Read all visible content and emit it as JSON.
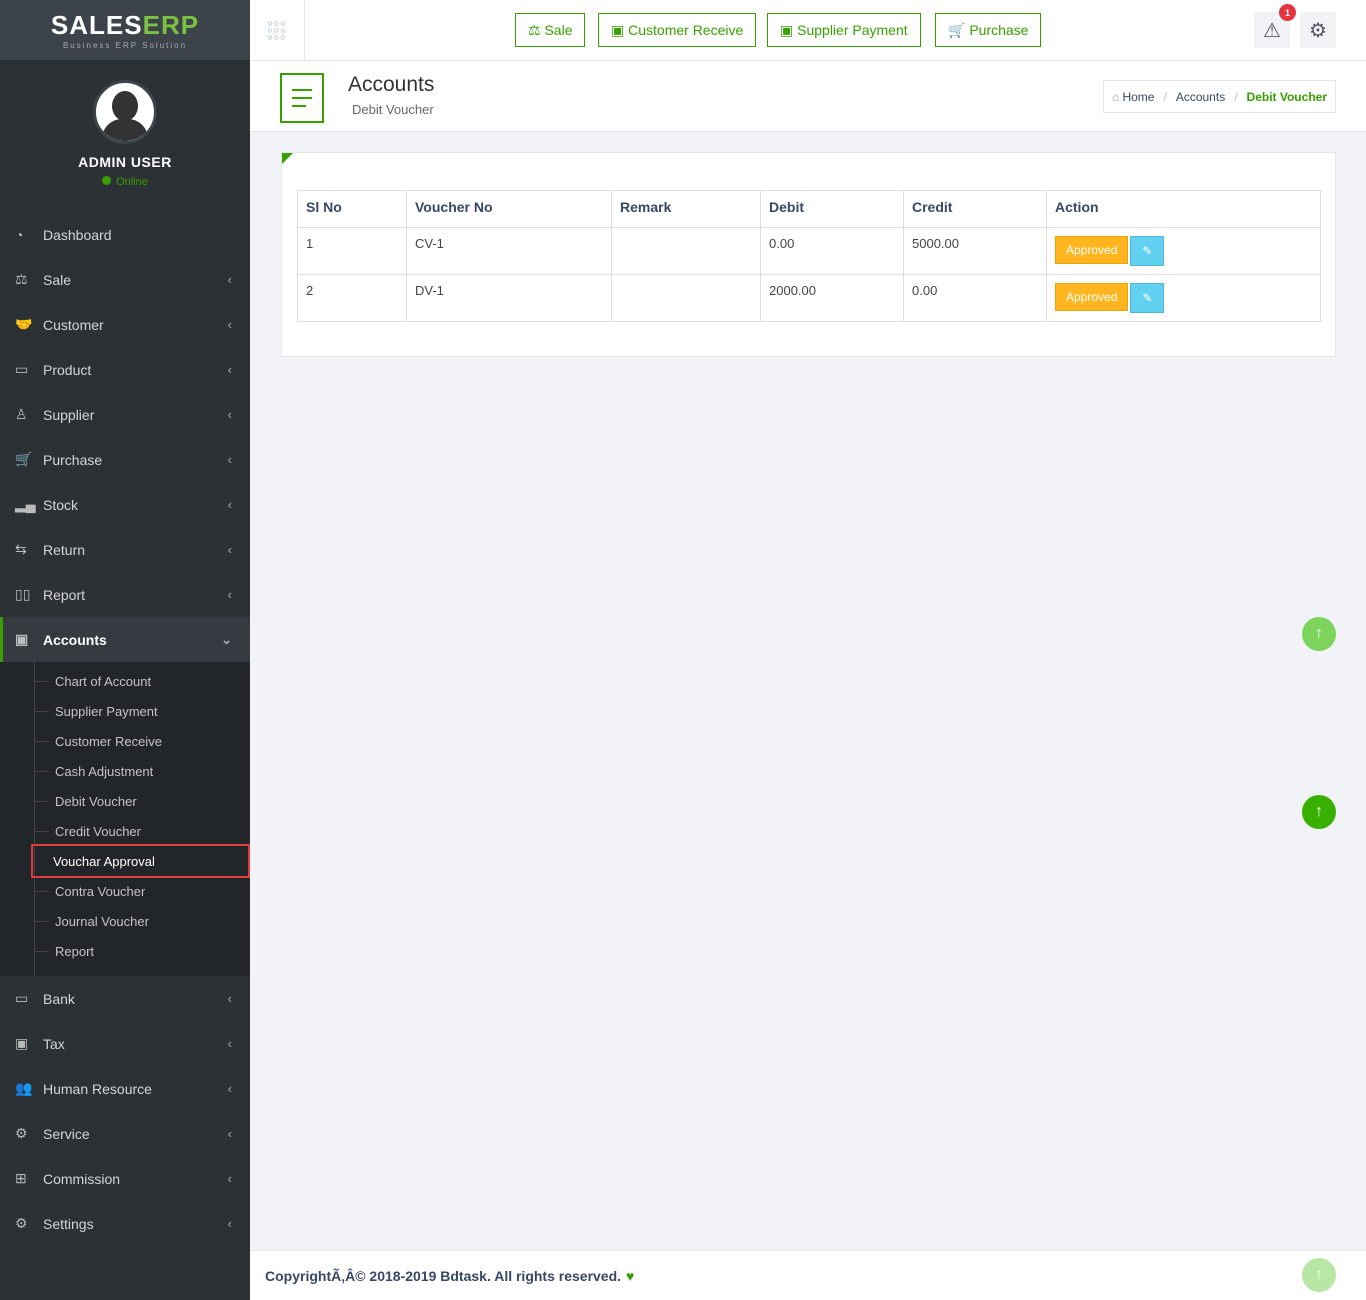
{
  "brand": {
    "logo_main": "SALES",
    "logo_accent": "ERP",
    "tagline": "Business ERP Solution"
  },
  "user": {
    "name": "ADMIN USER",
    "status": "Online"
  },
  "sidebar": {
    "items": [
      {
        "label": "Dashboard",
        "icon": "dashboard-icon",
        "glyph": "◔"
      },
      {
        "label": "Sale",
        "icon": "balance-scale-icon",
        "glyph": "⚖"
      },
      {
        "label": "Customer",
        "icon": "handshake-icon",
        "glyph": "🤝"
      },
      {
        "label": "Product",
        "icon": "bag-icon",
        "glyph": "▭"
      },
      {
        "label": "Supplier",
        "icon": "user-icon",
        "glyph": "♙"
      },
      {
        "label": "Purchase",
        "icon": "cart-icon",
        "glyph": "🛒"
      },
      {
        "label": "Stock",
        "icon": "bar-chart-icon",
        "glyph": "▂▄"
      },
      {
        "label": "Return",
        "icon": "retweet-icon",
        "glyph": "⇆"
      },
      {
        "label": "Report",
        "icon": "book-icon",
        "glyph": "▯▯"
      },
      {
        "label": "Accounts",
        "icon": "money-icon",
        "glyph": "▣"
      }
    ],
    "accounts_sub": [
      "Chart of Account",
      "Supplier Payment",
      "Customer Receive",
      "Cash Adjustment",
      "Debit Voucher",
      "Credit Voucher",
      "Vouchar Approval",
      "Contra Voucher",
      "Journal Voucher",
      "Report"
    ],
    "items_after": [
      {
        "label": "Bank",
        "icon": "bank-icon",
        "glyph": "▭"
      },
      {
        "label": "Tax",
        "icon": "money-icon",
        "glyph": "▣"
      },
      {
        "label": "Human Resource",
        "icon": "users-icon",
        "glyph": "👥"
      },
      {
        "label": "Service",
        "icon": "service-icon",
        "glyph": "⚙"
      },
      {
        "label": "Commission",
        "icon": "grid-icon",
        "glyph": "⊞"
      },
      {
        "label": "Settings",
        "icon": "settings-icon",
        "glyph": "⚙"
      }
    ]
  },
  "topbar": {
    "buttons": [
      "Sale",
      "Customer Receive",
      "Supplier Payment",
      "Purchase"
    ],
    "notification_count": "1"
  },
  "page": {
    "title": "Accounts",
    "subtitle": "Debit Voucher"
  },
  "breadcrumb": [
    "Home",
    "Accounts",
    "Debit Voucher"
  ],
  "table": {
    "headers": [
      "Sl No",
      "Voucher No",
      "Remark",
      "Debit",
      "Credit",
      "Action"
    ],
    "rows": [
      {
        "sl": "1",
        "voucher": "CV-1",
        "remark": "",
        "debit": "0.00",
        "credit": "5000.00",
        "action": "Approved"
      },
      {
        "sl": "2",
        "voucher": "DV-1",
        "remark": "",
        "debit": "2000.00",
        "credit": "0.00",
        "action": "Approved"
      }
    ]
  },
  "footer": {
    "text": "CopyrightÃ‚Â© 2018-2019 Bdtask. All rights reserved."
  },
  "colors": {
    "accent": "#37a000",
    "approved": "#ffb61e",
    "edit": "#62d0f1",
    "sidebar": "#2c3136"
  }
}
